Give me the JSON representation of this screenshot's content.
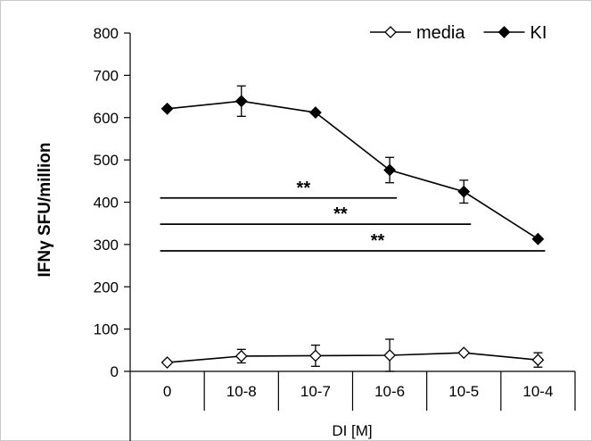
{
  "chart_data": {
    "type": "line",
    "title": "",
    "xlabel": "DI [M]",
    "ylabel": "IFNγ SFU/million",
    "categories": [
      "0",
      "10-8",
      "10-7",
      "10-6",
      "10-5",
      "10-4"
    ],
    "ylim": [
      0,
      800
    ],
    "yticks": [
      0,
      100,
      200,
      300,
      400,
      500,
      600,
      700,
      800
    ],
    "grid": false,
    "legend_position": "top-right",
    "series": [
      {
        "name": "media",
        "marker": "open-diamond",
        "values": [
          21,
          36,
          37,
          38,
          44,
          27
        ],
        "errors": [
          0,
          16,
          25,
          38,
          0,
          17
        ]
      },
      {
        "name": "KI",
        "marker": "filled-diamond",
        "values": [
          621,
          639,
          612,
          476,
          425,
          313
        ],
        "errors": [
          0,
          36,
          0,
          30,
          27,
          0
        ]
      }
    ],
    "significance": [
      {
        "label": "**",
        "from": "0",
        "to": "10-6"
      },
      {
        "label": "**",
        "from": "0",
        "to": "10-5"
      },
      {
        "label": "**",
        "from": "0",
        "to": "10-4"
      }
    ],
    "significance_levels": [
      410,
      348,
      285
    ]
  }
}
